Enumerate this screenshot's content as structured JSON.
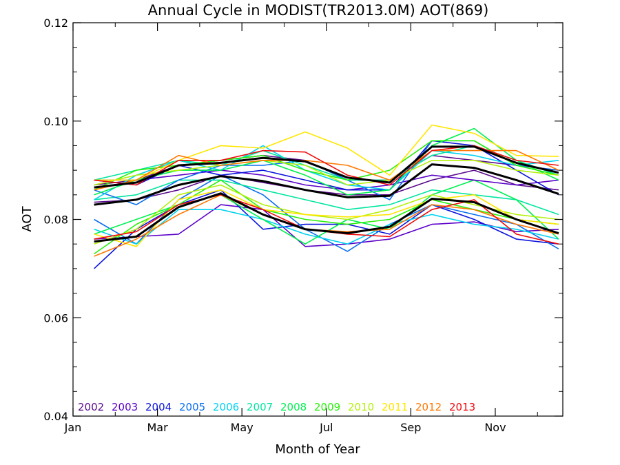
{
  "chart_data": {
    "type": "line",
    "title": "Annual Cycle in MODIST(TR2013.0M) AOT(869)",
    "xlabel": "Month of Year",
    "ylabel": "AOT",
    "xlim": [
      1,
      12.6
    ],
    "ylim": [
      0.04,
      0.12
    ],
    "grid": false,
    "legend_position": "bottom-left",
    "x_ticks": [
      {
        "value": 1,
        "label": "Jan"
      },
      {
        "value": 3,
        "label": "Mar"
      },
      {
        "value": 5,
        "label": "May"
      },
      {
        "value": 7,
        "label": "Jul"
      },
      {
        "value": 9,
        "label": "Sep"
      },
      {
        "value": 11,
        "label": "Nov"
      }
    ],
    "y_ticks": [
      {
        "value": 0.04,
        "label": "0.04"
      },
      {
        "value": 0.06,
        "label": "0.06"
      },
      {
        "value": 0.08,
        "label": "0.08"
      },
      {
        "value": 0.1,
        "label": "0.10"
      },
      {
        "value": 0.12,
        "label": "0.12"
      }
    ],
    "x": [
      1.5,
      2.5,
      3.5,
      4.5,
      5.5,
      6.5,
      7.5,
      8.5,
      9.5,
      10.5,
      11.5,
      12.5
    ],
    "series": [
      {
        "name": "2002",
        "color": "#5a0a8c",
        "values": [
          0.0835,
          0.084,
          0.086,
          0.089,
          0.0875,
          0.086,
          0.085,
          0.085,
          0.088,
          0.09,
          0.087,
          0.086
        ]
      },
      {
        "name": "2003",
        "color": "#5a00c8",
        "values": [
          0.076,
          0.0765,
          0.077,
          0.083,
          0.082,
          0.0745,
          0.075,
          0.076,
          0.079,
          0.0795,
          0.0775,
          0.078
        ]
      },
      {
        "name": "2004",
        "color": "#0a14dc",
        "values": [
          0.07,
          0.078,
          0.083,
          0.086,
          0.078,
          0.079,
          0.079,
          0.077,
          0.083,
          0.08,
          0.076,
          0.075
        ]
      },
      {
        "name": "2005",
        "color": "#0a6ef0",
        "values": [
          0.08,
          0.075,
          0.084,
          0.089,
          0.085,
          0.078,
          0.0735,
          0.079,
          0.083,
          0.081,
          0.079,
          0.074
        ]
      },
      {
        "name": "2006",
        "color": "#00d2f0",
        "values": [
          0.078,
          0.075,
          0.082,
          0.082,
          0.08,
          0.077,
          0.075,
          0.079,
          0.081,
          0.079,
          0.078,
          0.076
        ]
      },
      {
        "name": "2007",
        "color": "#00e6a0",
        "values": [
          0.084,
          0.085,
          0.088,
          0.088,
          0.086,
          0.084,
          0.082,
          0.083,
          0.086,
          0.085,
          0.084,
          0.081
        ]
      },
      {
        "name": "2008",
        "color": "#00f050",
        "values": [
          0.077,
          0.08,
          0.083,
          0.085,
          0.08,
          0.075,
          0.08,
          0.078,
          0.085,
          0.088,
          0.084,
          0.076
        ]
      },
      {
        "name": "2009",
        "color": "#28f00a",
        "values": [
          0.073,
          0.079,
          0.083,
          0.088,
          0.082,
          0.08,
          0.079,
          0.08,
          0.084,
          0.082,
          0.08,
          0.079
        ]
      },
      {
        "name": "2010",
        "color": "#b4f00a",
        "values": [
          0.075,
          0.078,
          0.085,
          0.087,
          0.083,
          0.081,
          0.08,
          0.082,
          0.085,
          0.083,
          0.081,
          0.08
        ]
      },
      {
        "name": "2011",
        "color": "#ffe600",
        "values": [
          0.077,
          0.0745,
          0.084,
          0.086,
          0.082,
          0.081,
          0.0805,
          0.081,
          0.084,
          0.085,
          0.08,
          0.079
        ]
      },
      {
        "name": "2012",
        "color": "#ff7800",
        "values": [
          0.0725,
          0.076,
          0.081,
          0.085,
          0.081,
          0.078,
          0.0775,
          0.078,
          0.083,
          0.082,
          0.079,
          0.077
        ]
      },
      {
        "name": "2013",
        "color": "#f00a0a",
        "values": [
          0.076,
          0.0775,
          0.083,
          0.085,
          0.082,
          0.078,
          0.077,
          0.0765,
          0.082,
          0.084,
          0.077,
          0.075
        ]
      },
      {
        "color": "#5a0a8c",
        "values": [
          0.087,
          0.088,
          0.091,
          0.092,
          0.093,
          0.092,
          0.088,
          0.088,
          0.093,
          0.092,
          0.091,
          0.09
        ]
      },
      {
        "color": "#5a00c8",
        "values": [
          0.088,
          0.088,
          0.089,
          0.09,
          0.089,
          0.087,
          0.086,
          0.087,
          0.089,
          0.088,
          0.087,
          0.088
        ]
      },
      {
        "color": "#0a14dc",
        "values": [
          0.088,
          0.087,
          0.091,
          0.089,
          0.09,
          0.088,
          0.086,
          0.086,
          0.096,
          0.095,
          0.09,
          0.085
        ]
      },
      {
        "color": "#0a6ef0",
        "values": [
          0.086,
          0.083,
          0.088,
          0.091,
          0.091,
          0.092,
          0.088,
          0.084,
          0.096,
          0.096,
          0.091,
          0.09
        ]
      },
      {
        "color": "#00d2f0",
        "values": [
          0.084,
          0.089,
          0.092,
          0.09,
          0.095,
          0.09,
          0.087,
          0.086,
          0.094,
          0.093,
          0.091,
          0.092
        ]
      },
      {
        "color": "#00e6a0",
        "values": [
          0.088,
          0.09,
          0.092,
          0.091,
          0.094,
          0.091,
          0.088,
          0.088,
          0.093,
          0.095,
          0.092,
          0.089
        ]
      },
      {
        "color": "#00f050",
        "values": [
          0.085,
          0.088,
          0.09,
          0.09,
          0.092,
          0.089,
          0.085,
          0.086,
          0.095,
          0.0985,
          0.092,
          0.088
        ]
      },
      {
        "color": "#28f00a",
        "values": [
          0.086,
          0.09,
          0.091,
          0.092,
          0.093,
          0.09,
          0.088,
          0.09,
          0.096,
          0.096,
          0.091,
          0.089
        ]
      },
      {
        "color": "#b4f00a",
        "values": [
          0.087,
          0.089,
          0.09,
          0.091,
          0.092,
          0.091,
          0.087,
          0.088,
          0.092,
          0.092,
          0.09,
          0.089
        ]
      },
      {
        "color": "#ffe600",
        "values": [
          0.088,
          0.088,
          0.092,
          0.095,
          0.0945,
          0.0978,
          0.0945,
          0.089,
          0.0992,
          0.0975,
          0.093,
          0.0928
        ]
      },
      {
        "color": "#ff7800",
        "values": [
          0.086,
          0.088,
          0.093,
          0.091,
          0.092,
          0.092,
          0.091,
          0.088,
          0.094,
          0.094,
          0.094,
          0.09
        ]
      },
      {
        "color": "#f00a0a",
        "values": [
          0.088,
          0.087,
          0.092,
          0.092,
          0.094,
          0.0937,
          0.089,
          0.087,
          0.094,
          0.095,
          0.092,
          0.091
        ]
      },
      {
        "color": "#000000",
        "values": [
          0.0865,
          0.0875,
          0.091,
          0.0915,
          0.0925,
          0.0918,
          0.0885,
          0.0875,
          0.0948,
          0.0948,
          0.0915,
          0.0895
        ]
      },
      {
        "color": "#000000",
        "values": [
          0.083,
          0.084,
          0.087,
          0.0888,
          0.0878,
          0.086,
          0.0845,
          0.0848,
          0.0912,
          0.0905,
          0.088,
          0.0852
        ]
      },
      {
        "color": "#000000",
        "values": [
          0.0755,
          0.0765,
          0.0825,
          0.0853,
          0.081,
          0.078,
          0.0772,
          0.0785,
          0.0842,
          0.0835,
          0.08,
          0.0772
        ]
      }
    ]
  }
}
